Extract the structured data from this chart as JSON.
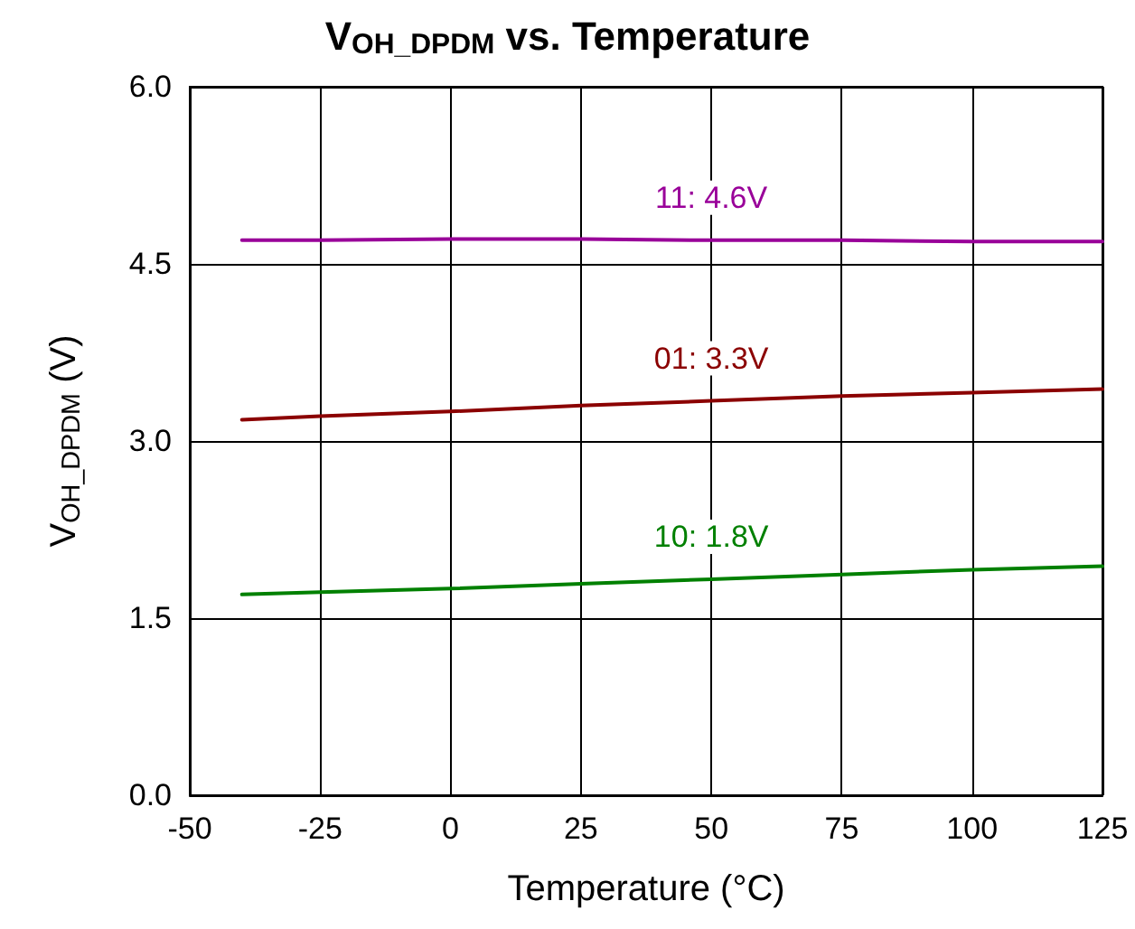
{
  "chart_data": {
    "type": "line",
    "title": "V$_{OH_DPDM}$ vs. Temperature",
    "xlabel": "Temperature (°C)",
    "ylabel": "V$_{OH_DPDM}$ (V)",
    "x": [
      -40,
      -25,
      0,
      25,
      50,
      75,
      100,
      125
    ],
    "series": [
      {
        "name": "11: 4.6V",
        "color": "#990099",
        "values": [
          4.7,
          4.7,
          4.71,
          4.71,
          4.7,
          4.7,
          4.69,
          4.69
        ]
      },
      {
        "name": "01: 3.3V",
        "color": "#8b0000",
        "values": [
          3.18,
          3.21,
          3.25,
          3.3,
          3.34,
          3.38,
          3.41,
          3.44
        ]
      },
      {
        "name": "10: 1.8V",
        "color": "#008000",
        "values": [
          1.7,
          1.72,
          1.75,
          1.79,
          1.83,
          1.87,
          1.91,
          1.94
        ]
      }
    ],
    "xlim": [
      -50,
      125
    ],
    "xticks": [
      -50,
      -25,
      0,
      25,
      50,
      75,
      100,
      125
    ],
    "ylim": [
      0,
      6
    ],
    "yticks": [
      {
        "value": 0,
        "label": "0.0"
      },
      1.5,
      {
        "value": 3,
        "label": "3.0"
      },
      4.5,
      {
        "value": 6,
        "label": "6.0"
      }
    ],
    "grid": true,
    "legend": false,
    "marker": "none",
    "line_style": "solid"
  }
}
